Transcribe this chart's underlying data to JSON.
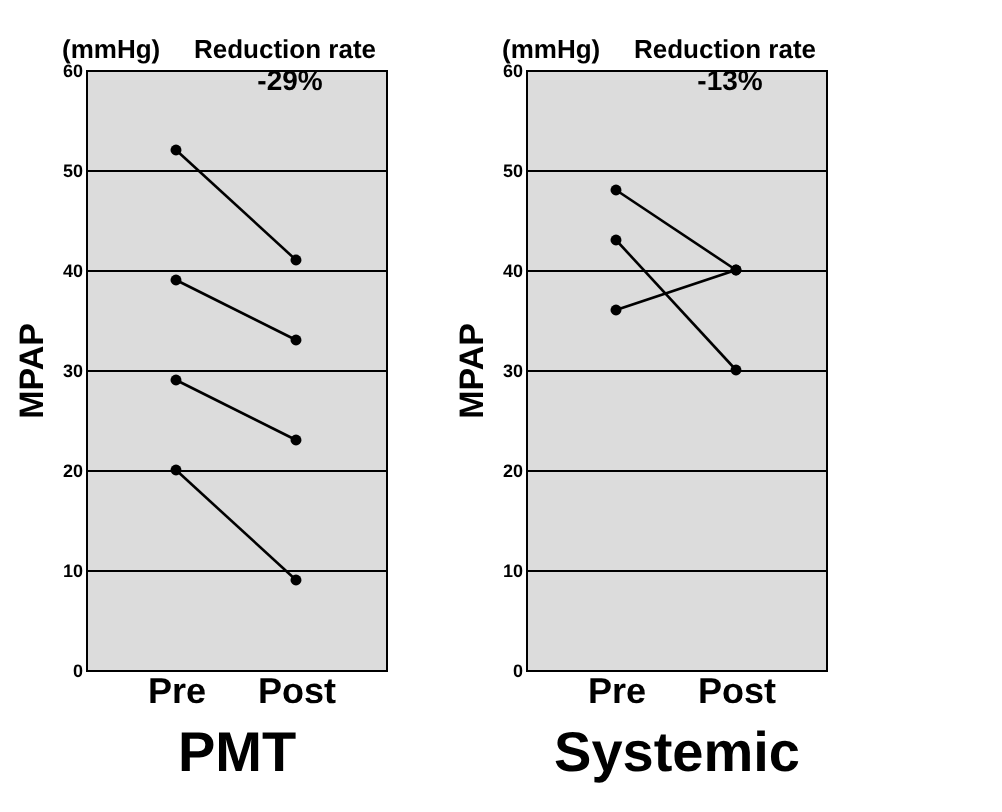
{
  "chart_data": [
    {
      "type": "line",
      "xlabel": "PMT",
      "ylabel": "MPAP",
      "categories": [
        "Pre",
        "Post"
      ],
      "series": [
        {
          "color": "#000000",
          "values": [
            52,
            41
          ]
        },
        {
          "color": "#000000",
          "values": [
            39,
            33
          ]
        },
        {
          "color": "#000000",
          "values": [
            29,
            23
          ]
        },
        {
          "color": "#000000",
          "values": [
            20,
            9
          ]
        }
      ],
      "ylim": [
        0,
        60
      ],
      "yticks": [
        0,
        10,
        20,
        30,
        40,
        50,
        60
      ],
      "grid": "y",
      "marker": "circle",
      "line_style": "solid",
      "legend": false,
      "annotations": [
        "(mmHg)",
        "Reduction rate",
        "-29%"
      ]
    },
    {
      "type": "line",
      "xlabel": "Systemic",
      "ylabel": "MPAP",
      "categories": [
        "Pre",
        "Post"
      ],
      "series": [
        {
          "color": "#000000",
          "values": [
            48,
            40
          ]
        },
        {
          "color": "#000000",
          "values": [
            43,
            30
          ]
        },
        {
          "color": "#000000",
          "values": [
            36,
            40
          ]
        }
      ],
      "ylim": [
        0,
        60
      ],
      "yticks": [
        0,
        10,
        20,
        30,
        40,
        50,
        60
      ],
      "grid": "y",
      "marker": "circle",
      "line_style": "solid",
      "legend": false,
      "annotations": [
        "(mmHg)",
        "Reduction rate",
        "-13%"
      ]
    }
  ]
}
